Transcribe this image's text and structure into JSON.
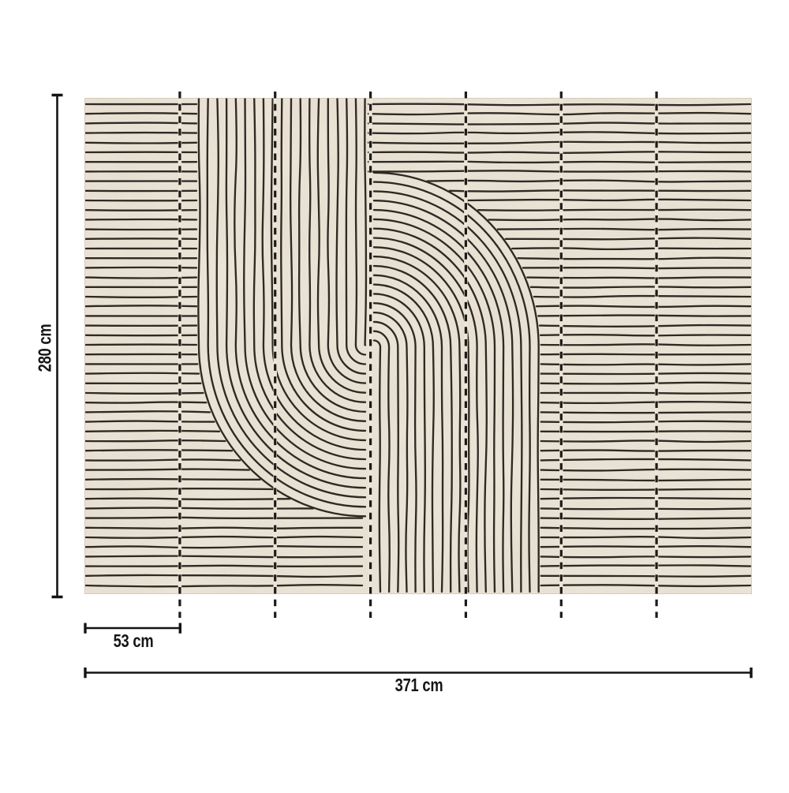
{
  "page": {
    "background": "#ffffff"
  },
  "artwork": {
    "description": "Beige abstract line-art wallpaper mural: horizontal line fields with two curved vertical ribbon bands meeting at the center, split into seven panels by dashed cut lines",
    "background_color": "#ece5d8",
    "texture_color": "#c7b9a4",
    "line_color": "#2e2923",
    "divider_color": "#1d1a17",
    "panel_count": 7
  },
  "dimensions": {
    "color": "#141414",
    "height_label": "280 cm",
    "panel_width_label": "53 cm",
    "total_width_label": "371 cm"
  }
}
